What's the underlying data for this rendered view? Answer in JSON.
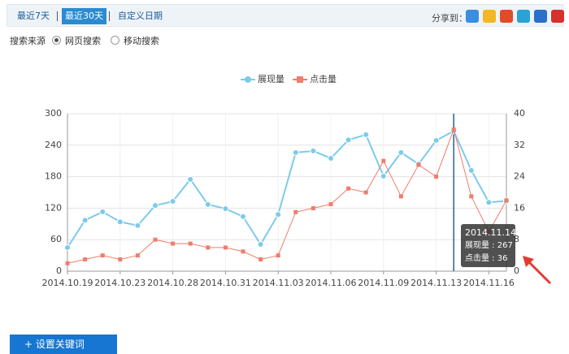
{
  "header": {
    "tabs": [
      "最近7天",
      "最近30天",
      "自定义日期"
    ],
    "share_label": "分享到："
  },
  "filter": {
    "label": "搜索来源",
    "options": [
      "网页搜索",
      "移动搜索"
    ]
  },
  "button": "+ 设置关键词",
  "chart_data": {
    "type": "line",
    "categories": [
      "2014.10.19",
      null,
      null,
      "2014.10.23",
      null,
      null,
      "2014.10.28",
      null,
      null,
      "2014.10.31",
      null,
      null,
      "2014.11.03",
      null,
      null,
      "2014.11.06",
      null,
      null,
      "2014.11.09",
      null,
      null,
      "2014.11.13",
      null,
      null,
      "2014.11.16",
      null
    ],
    "series": [
      {
        "name": "展现量",
        "color": "#7ccbea",
        "axis": "y",
        "values": [
          45,
          97,
          113,
          94,
          87,
          125,
          133,
          175,
          127,
          119,
          104,
          51,
          108,
          226,
          229,
          215,
          250,
          260,
          181,
          226,
          204,
          249,
          267,
          192,
          131,
          134
        ]
      },
      {
        "name": "点击量",
        "color": "#f07c6c",
        "axis": "y2",
        "values": [
          2,
          3,
          4,
          3,
          4,
          8,
          7,
          7,
          6,
          6,
          5,
          3,
          4,
          15,
          16,
          17,
          21,
          20,
          28,
          19,
          27,
          24,
          36,
          19,
          10,
          18
        ]
      }
    ],
    "ylim": [
      0,
      300
    ],
    "yticks": [
      0,
      60,
      120,
      180,
      240,
      300
    ],
    "y2lim": [
      0,
      40
    ],
    "y2ticks": [
      0,
      8,
      16,
      24,
      32,
      40
    ],
    "grid": true,
    "legend": "top",
    "crosshair_index": 22,
    "tooltip": {
      "title": "2014.11.14",
      "lines": [
        "展现量 : 267",
        "点击量 : 36"
      ]
    }
  }
}
